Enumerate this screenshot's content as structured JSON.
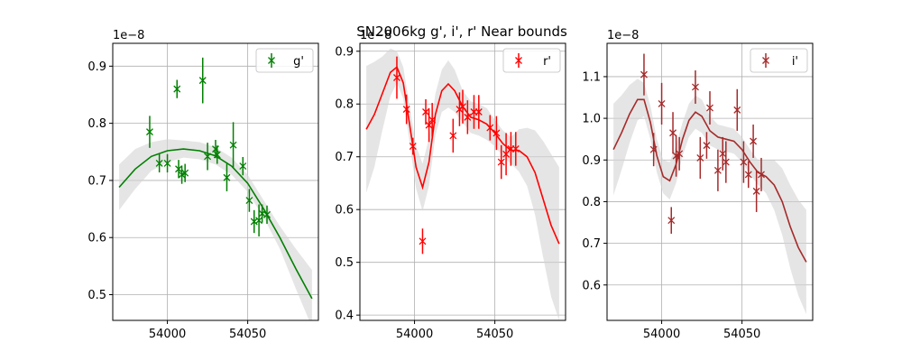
{
  "figure": {
    "title": "SN2006kg  g', i', r' Near bounds"
  },
  "chart_data": [
    {
      "type": "scatter",
      "band": "g'",
      "color": "#008000",
      "offset_label": "1e−8",
      "xlim": [
        53966,
        54094
      ],
      "ylim": [
        0.455,
        0.94
      ],
      "xticks": [
        54000,
        54050
      ],
      "xtick_labels": [
        "54000",
        "54050"
      ],
      "yticks": [
        0.5,
        0.6,
        0.7,
        0.8,
        0.9
      ],
      "ytick_labels": [
        "0.5",
        "0.6",
        "0.7",
        "0.8",
        "0.9"
      ],
      "grid": true,
      "legend": {
        "label": "g'",
        "position": "upper right"
      },
      "points": [
        {
          "x": 53989,
          "y": 0.785,
          "err": 0.028
        },
        {
          "x": 53995,
          "y": 0.73,
          "err": 0.016
        },
        {
          "x": 54000,
          "y": 0.73,
          "err": 0.016
        },
        {
          "x": 54006,
          "y": 0.86,
          "err": 0.016
        },
        {
          "x": 54007,
          "y": 0.72,
          "err": 0.016
        },
        {
          "x": 54009,
          "y": 0.71,
          "err": 0.016
        },
        {
          "x": 54011,
          "y": 0.713,
          "err": 0.016
        },
        {
          "x": 54022,
          "y": 0.875,
          "err": 0.04
        },
        {
          "x": 54025,
          "y": 0.742,
          "err": 0.024
        },
        {
          "x": 54030,
          "y": 0.755,
          "err": 0.016
        },
        {
          "x": 54031,
          "y": 0.745,
          "err": 0.016
        },
        {
          "x": 54037,
          "y": 0.705,
          "err": 0.024
        },
        {
          "x": 54041,
          "y": 0.762,
          "err": 0.04
        },
        {
          "x": 54047,
          "y": 0.725,
          "err": 0.016
        },
        {
          "x": 54051,
          "y": 0.665,
          "err": 0.02
        },
        {
          "x": 54054,
          "y": 0.628,
          "err": 0.02
        },
        {
          "x": 54057,
          "y": 0.63,
          "err": 0.028
        },
        {
          "x": 54059,
          "y": 0.642,
          "err": 0.016
        },
        {
          "x": 54062,
          "y": 0.64,
          "err": 0.016
        }
      ],
      "model": [
        {
          "x": 53970,
          "y": 0.688
        },
        {
          "x": 53980,
          "y": 0.72
        },
        {
          "x": 53990,
          "y": 0.742
        },
        {
          "x": 54000,
          "y": 0.752
        },
        {
          "x": 54010,
          "y": 0.755
        },
        {
          "x": 54020,
          "y": 0.752
        },
        {
          "x": 54030,
          "y": 0.743
        },
        {
          "x": 54040,
          "y": 0.725
        },
        {
          "x": 54050,
          "y": 0.695
        },
        {
          "x": 54060,
          "y": 0.65
        },
        {
          "x": 54070,
          "y": 0.6
        },
        {
          "x": 54080,
          "y": 0.545
        },
        {
          "x": 54090,
          "y": 0.493
        }
      ],
      "band_width": [
        0.04,
        0.035,
        0.025,
        0.02,
        0.015,
        0.015,
        0.015,
        0.015,
        0.015,
        0.015,
        0.02,
        0.035,
        0.05
      ]
    },
    {
      "type": "scatter",
      "band": "r'",
      "color": "#ff0000",
      "offset_label": "1e−8",
      "xlim": [
        53966,
        54094
      ],
      "ylim": [
        0.39,
        0.915
      ],
      "xticks": [
        54000,
        54050
      ],
      "xtick_labels": [
        "54000",
        "54050"
      ],
      "yticks": [
        0.4,
        0.5,
        0.6,
        0.7,
        0.8,
        0.9
      ],
      "ytick_labels": [
        "0.4",
        "0.5",
        "0.6",
        "0.7",
        "0.8",
        "0.9"
      ],
      "grid": true,
      "legend": {
        "label": "r'",
        "position": "upper right"
      },
      "points": [
        {
          "x": 53989,
          "y": 0.85,
          "err": 0.04
        },
        {
          "x": 53995,
          "y": 0.79,
          "err": 0.028
        },
        {
          "x": 53999,
          "y": 0.72,
          "err": 0.016
        },
        {
          "x": 54005,
          "y": 0.54,
          "err": 0.024
        },
        {
          "x": 54007,
          "y": 0.785,
          "err": 0.024
        },
        {
          "x": 54009,
          "y": 0.76,
          "err": 0.032
        },
        {
          "x": 54011,
          "y": 0.77,
          "err": 0.032
        },
        {
          "x": 54024,
          "y": 0.74,
          "err": 0.032
        },
        {
          "x": 54028,
          "y": 0.79,
          "err": 0.032
        },
        {
          "x": 54030,
          "y": 0.795,
          "err": 0.032
        },
        {
          "x": 54033,
          "y": 0.775,
          "err": 0.032
        },
        {
          "x": 54037,
          "y": 0.785,
          "err": 0.032
        },
        {
          "x": 54040,
          "y": 0.785,
          "err": 0.032
        },
        {
          "x": 54047,
          "y": 0.755,
          "err": 0.024
        },
        {
          "x": 54051,
          "y": 0.745,
          "err": 0.032
        },
        {
          "x": 54054,
          "y": 0.69,
          "err": 0.032
        },
        {
          "x": 54057,
          "y": 0.705,
          "err": 0.04
        },
        {
          "x": 54060,
          "y": 0.715,
          "err": 0.032
        },
        {
          "x": 54063,
          "y": 0.715,
          "err": 0.032
        }
      ],
      "model": [
        {
          "x": 53970,
          "y": 0.752
        },
        {
          "x": 53975,
          "y": 0.78
        },
        {
          "x": 53980,
          "y": 0.82
        },
        {
          "x": 53985,
          "y": 0.86
        },
        {
          "x": 53989,
          "y": 0.87
        },
        {
          "x": 53993,
          "y": 0.84
        },
        {
          "x": 53997,
          "y": 0.76
        },
        {
          "x": 54001,
          "y": 0.68
        },
        {
          "x": 54005,
          "y": 0.642
        },
        {
          "x": 54009,
          "y": 0.69
        },
        {
          "x": 54013,
          "y": 0.78
        },
        {
          "x": 54017,
          "y": 0.825
        },
        {
          "x": 54021,
          "y": 0.838
        },
        {
          "x": 54025,
          "y": 0.825
        },
        {
          "x": 54030,
          "y": 0.795
        },
        {
          "x": 54035,
          "y": 0.775
        },
        {
          "x": 54040,
          "y": 0.77
        },
        {
          "x": 54045,
          "y": 0.762
        },
        {
          "x": 54050,
          "y": 0.745
        },
        {
          "x": 54055,
          "y": 0.725
        },
        {
          "x": 54060,
          "y": 0.712
        },
        {
          "x": 54065,
          "y": 0.712
        },
        {
          "x": 54070,
          "y": 0.7
        },
        {
          "x": 54075,
          "y": 0.67
        },
        {
          "x": 54080,
          "y": 0.62
        },
        {
          "x": 54085,
          "y": 0.57
        },
        {
          "x": 54090,
          "y": 0.535
        }
      ],
      "band_width": [
        0.12,
        0.1,
        0.07,
        0.045,
        0.03,
        0.03,
        0.035,
        0.04,
        0.045,
        0.045,
        0.04,
        0.04,
        0.045,
        0.04,
        0.03,
        0.03,
        0.03,
        0.03,
        0.025,
        0.025,
        0.025,
        0.04,
        0.055,
        0.08,
        0.11,
        0.135,
        0.145
      ]
    },
    {
      "type": "scatter",
      "band": "i'",
      "color": "#a52a2a",
      "offset_label": "1e−8",
      "xlim": [
        53966,
        54094
      ],
      "ylim": [
        0.515,
        1.18
      ],
      "xticks": [
        54000,
        54050
      ],
      "xtick_labels": [
        "54000",
        "54050"
      ],
      "yticks": [
        0.6,
        0.7,
        0.8,
        0.9,
        1.0,
        1.1
      ],
      "ytick_labels": [
        "0.6",
        "0.7",
        "0.8",
        "0.9",
        "1.0",
        "1.1"
      ],
      "grid": true,
      "legend": {
        "label": "i'",
        "position": "upper right"
      },
      "points": [
        {
          "x": 53989,
          "y": 1.105,
          "err": 0.05
        },
        {
          "x": 53995,
          "y": 0.925,
          "err": 0.04
        },
        {
          "x": 54000,
          "y": 1.035,
          "err": 0.05
        },
        {
          "x": 54006,
          "y": 0.755,
          "err": 0.032
        },
        {
          "x": 54007,
          "y": 0.965,
          "err": 0.05
        },
        {
          "x": 54009,
          "y": 0.91,
          "err": 0.05
        },
        {
          "x": 54011,
          "y": 0.915,
          "err": 0.04
        },
        {
          "x": 54021,
          "y": 1.075,
          "err": 0.04
        },
        {
          "x": 54024,
          "y": 0.905,
          "err": 0.05
        },
        {
          "x": 54028,
          "y": 0.935,
          "err": 0.032
        },
        {
          "x": 54030,
          "y": 1.025,
          "err": 0.04
        },
        {
          "x": 54035,
          "y": 0.875,
          "err": 0.05
        },
        {
          "x": 54038,
          "y": 0.915,
          "err": 0.04
        },
        {
          "x": 54040,
          "y": 0.895,
          "err": 0.05
        },
        {
          "x": 54047,
          "y": 1.02,
          "err": 0.05
        },
        {
          "x": 54051,
          "y": 0.895,
          "err": 0.05
        },
        {
          "x": 54054,
          "y": 0.865,
          "err": 0.032
        },
        {
          "x": 54057,
          "y": 0.945,
          "err": 0.04
        },
        {
          "x": 54059,
          "y": 0.825,
          "err": 0.05
        },
        {
          "x": 54062,
          "y": 0.865,
          "err": 0.04
        }
      ],
      "model": [
        {
          "x": 53970,
          "y": 0.925
        },
        {
          "x": 53975,
          "y": 0.965
        },
        {
          "x": 53980,
          "y": 1.01
        },
        {
          "x": 53985,
          "y": 1.045
        },
        {
          "x": 53989,
          "y": 1.045
        },
        {
          "x": 53993,
          "y": 0.99
        },
        {
          "x": 53997,
          "y": 0.91
        },
        {
          "x": 54001,
          "y": 0.86
        },
        {
          "x": 54005,
          "y": 0.85
        },
        {
          "x": 54009,
          "y": 0.89
        },
        {
          "x": 54013,
          "y": 0.95
        },
        {
          "x": 54017,
          "y": 0.995
        },
        {
          "x": 54021,
          "y": 1.015
        },
        {
          "x": 54025,
          "y": 1.005
        },
        {
          "x": 54030,
          "y": 0.97
        },
        {
          "x": 54035,
          "y": 0.955
        },
        {
          "x": 54040,
          "y": 0.95
        },
        {
          "x": 54045,
          "y": 0.945
        },
        {
          "x": 54050,
          "y": 0.925
        },
        {
          "x": 54055,
          "y": 0.895
        },
        {
          "x": 54060,
          "y": 0.87
        },
        {
          "x": 54065,
          "y": 0.86
        },
        {
          "x": 54070,
          "y": 0.84
        },
        {
          "x": 54075,
          "y": 0.8
        },
        {
          "x": 54080,
          "y": 0.74
        },
        {
          "x": 54085,
          "y": 0.69
        },
        {
          "x": 54090,
          "y": 0.655
        }
      ],
      "band_width": [
        0.11,
        0.09,
        0.07,
        0.05,
        0.04,
        0.04,
        0.04,
        0.04,
        0.045,
        0.045,
        0.04,
        0.04,
        0.04,
        0.04,
        0.035,
        0.03,
        0.03,
        0.03,
        0.03,
        0.03,
        0.03,
        0.04,
        0.06,
        0.08,
        0.1,
        0.115,
        0.125
      ]
    }
  ]
}
